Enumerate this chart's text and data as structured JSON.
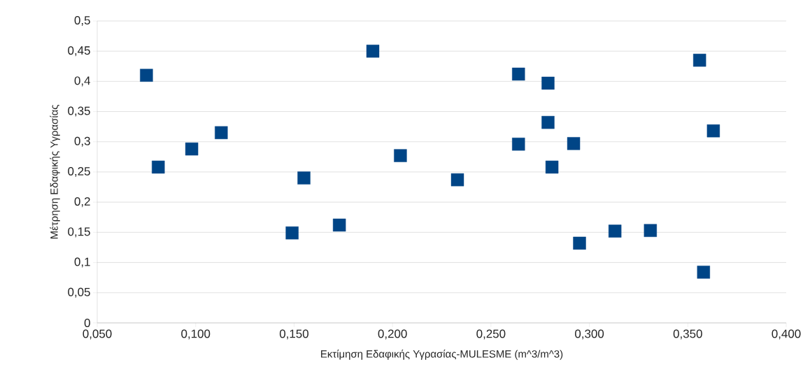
{
  "chart_data": {
    "type": "scatter",
    "xlabel": "Εκτίμηση Εδαφικής Υγρασίας-MULESME (m^3/m^3)",
    "ylabel": "Μέτρηση Εδαφικής Υγρασίας",
    "color": "#004586",
    "marker": "square",
    "grid": "y",
    "x": [
      0.075,
      0.081,
      0.098,
      0.113,
      0.149,
      0.155,
      0.173,
      0.19,
      0.204,
      0.233,
      0.264,
      0.264,
      0.279,
      0.279,
      0.281,
      0.292,
      0.295,
      0.313,
      0.331,
      0.356,
      0.363,
      0.358
    ],
    "values": [
      0.41,
      0.258,
      0.288,
      0.315,
      0.149,
      0.24,
      0.162,
      0.45,
      0.277,
      0.237,
      0.412,
      0.296,
      0.397,
      0.332,
      0.258,
      0.297,
      0.132,
      0.152,
      0.153,
      0.435,
      0.318,
      0.084
    ],
    "xlim": [
      0.05,
      0.4
    ],
    "xticks": [
      {
        "value": 0.05,
        "label": "0,050"
      },
      {
        "value": 0.1,
        "label": "0,100"
      },
      {
        "value": 0.15,
        "label": "0,150"
      },
      {
        "value": 0.2,
        "label": "0,200"
      },
      {
        "value": 0.25,
        "label": "0,250"
      },
      {
        "value": 0.3,
        "label": "0,300"
      },
      {
        "value": 0.35,
        "label": "0,350"
      },
      {
        "value": 0.4,
        "label": "0,400"
      }
    ],
    "ylim": [
      0,
      0.5
    ],
    "yticks": [
      0,
      {
        "value": 0.05,
        "label": "0,05"
      },
      {
        "value": 0.1,
        "label": "0,1"
      },
      {
        "value": 0.15,
        "label": "0,15"
      },
      {
        "value": 0.2,
        "label": "0,2"
      },
      {
        "value": 0.25,
        "label": "0,25"
      },
      {
        "value": 0.3,
        "label": "0,3"
      },
      {
        "value": 0.35,
        "label": "0,35"
      },
      {
        "value": 0.4,
        "label": "0,4"
      },
      {
        "value": 0.45,
        "label": "0,45"
      },
      {
        "value": 0.5,
        "label": "0,5"
      }
    ]
  }
}
